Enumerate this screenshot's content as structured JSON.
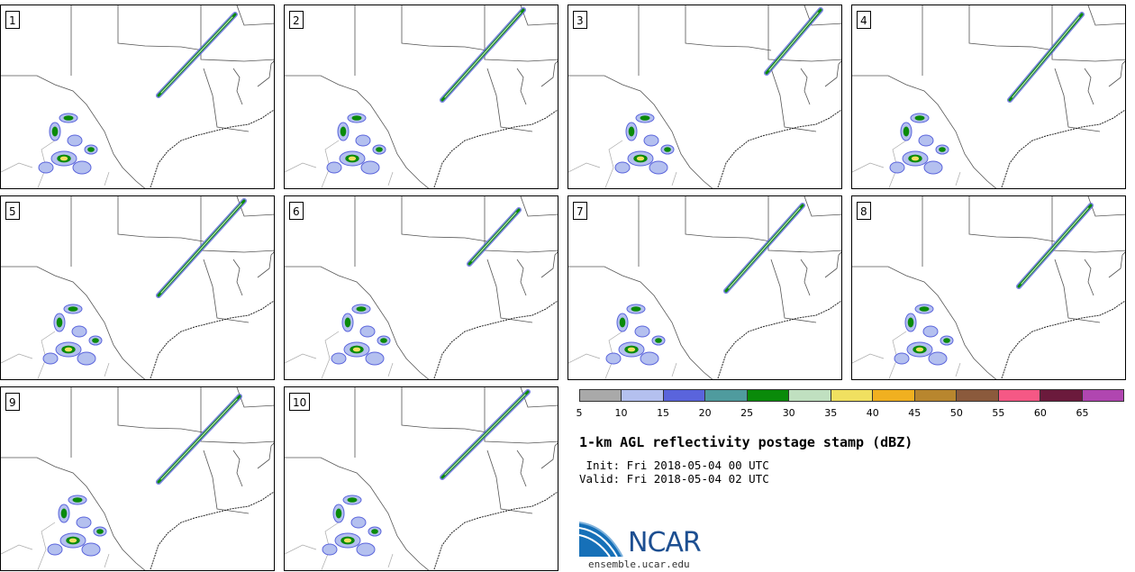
{
  "panels": [
    {
      "label": "1"
    },
    {
      "label": "2"
    },
    {
      "label": "3"
    },
    {
      "label": "4"
    },
    {
      "label": "5"
    },
    {
      "label": "6"
    },
    {
      "label": "7"
    },
    {
      "label": "8"
    },
    {
      "label": "9"
    },
    {
      "label": "10"
    }
  ],
  "colorbar": {
    "colors": [
      "#a9a9a9",
      "#b4c0ef",
      "#5a64dc",
      "#4f9b9e",
      "#0a8a0a",
      "#c0e0c0",
      "#f0e060",
      "#f0b020",
      "#b8862e",
      "#8b5a3c",
      "#f55885",
      "#6b1a3c",
      "#b046b0"
    ],
    "ticks": [
      "5",
      "10",
      "15",
      "20",
      "25",
      "30",
      "35",
      "40",
      "45",
      "50",
      "55",
      "60",
      "65"
    ]
  },
  "title": "1-km AGL reflectivity postage stamp (dBZ)",
  "init": " Init: Fri 2018-05-04 00 UTC",
  "valid": "Valid: Fri 2018-05-04 02 UTC",
  "logo": {
    "text": "NCAR"
  },
  "site": "ensemble.ucar.edu"
}
